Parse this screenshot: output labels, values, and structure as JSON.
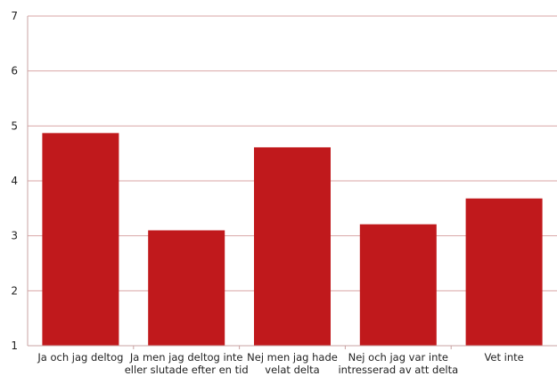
{
  "chart_data": {
    "type": "bar",
    "categories": [
      [
        "Ja och jag deltog"
      ],
      [
        "Ja men jag deltog inte",
        "eller slutade efter en tid"
      ],
      [
        "Nej men jag hade",
        "velat delta"
      ],
      [
        "Nej och jag var inte",
        "intresserad av att delta"
      ],
      [
        "Vet inte"
      ]
    ],
    "values": [
      4.87,
      3.1,
      4.61,
      3.21,
      3.68
    ],
    "ylim": [
      1,
      7
    ],
    "yticks": [
      "1",
      "2",
      "3",
      "4",
      "5",
      "6",
      "7"
    ],
    "grid": true,
    "bar_color": "#c0191c",
    "grid_color": "#d9a6a6",
    "axis_color": "#c9a3a3"
  }
}
